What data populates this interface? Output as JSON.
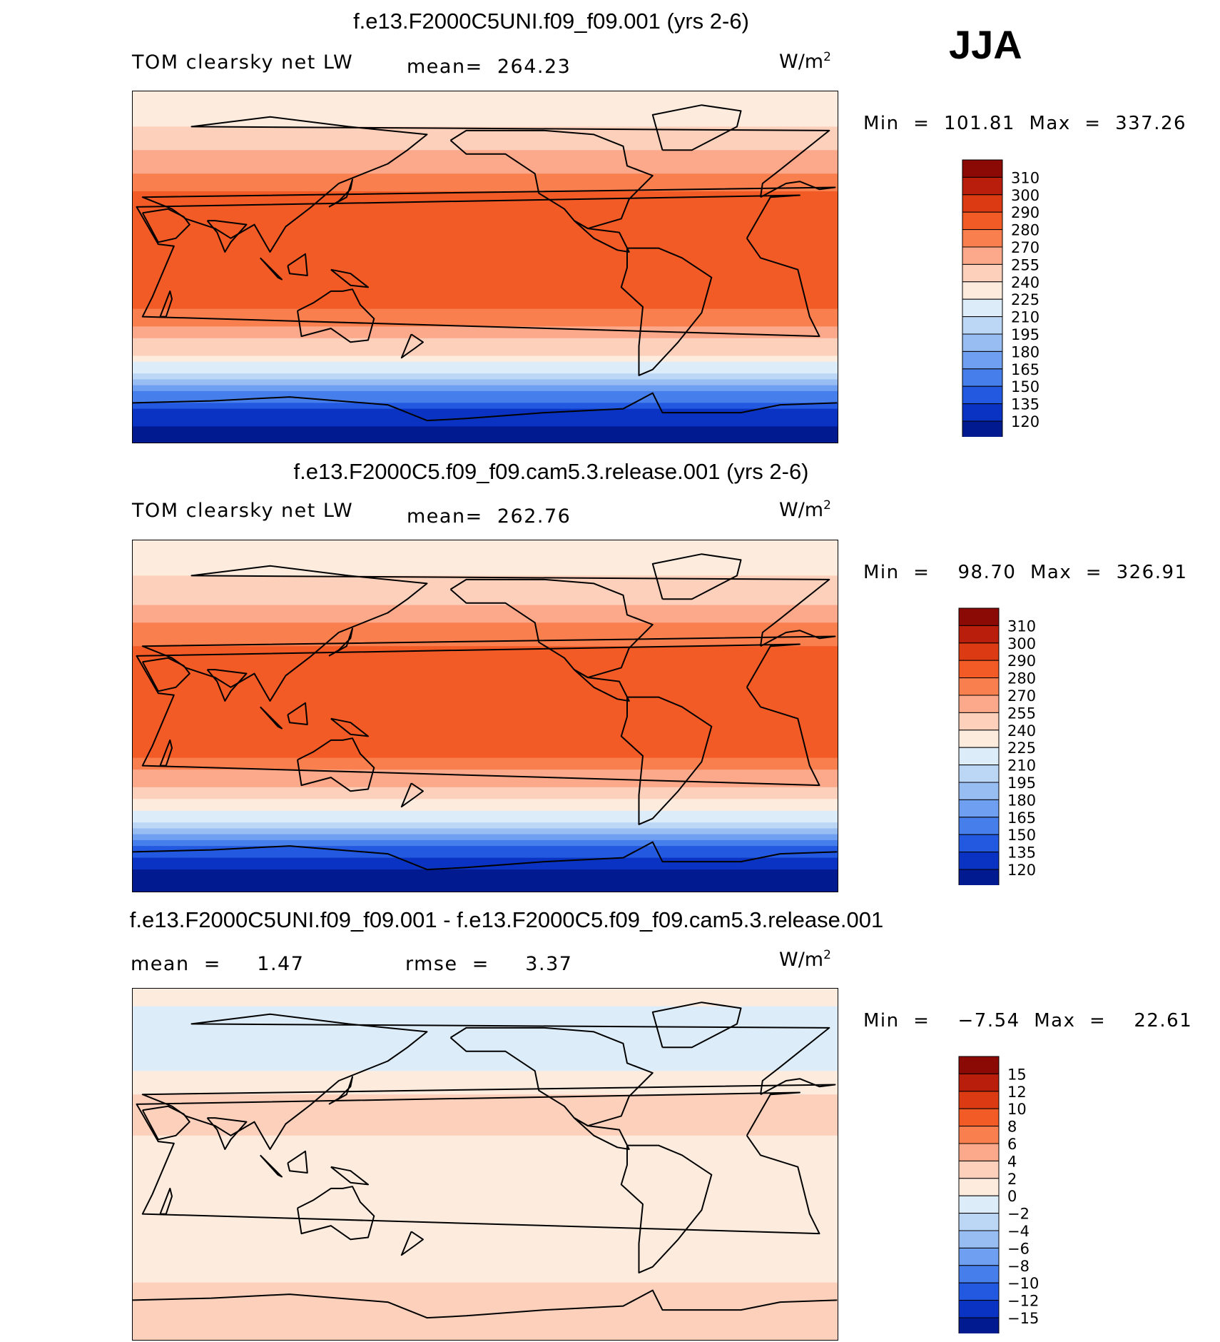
{
  "season": "JJA",
  "panels": [
    {
      "title": "f.e13.F2000C5UNI.f09_f09.001 (yrs 2-6)",
      "left_label": "TOM clearsky net LW",
      "stat": "mean=  264.23",
      "units": "W/m",
      "units_sup": "2",
      "minmax": "Min  =  101.81  Max  =  337.26"
    },
    {
      "title": "f.e13.F2000C5.f09_f09.cam5.3.release.001 (yrs 2-6)",
      "left_label": "TOM clearsky net LW",
      "stat": "mean=  262.76",
      "units": "W/m",
      "units_sup": "2",
      "minmax": "Min  =    98.70  Max  =  326.91"
    },
    {
      "title": "f.e13.F2000C5UNI.f09_f09.001 - f.e13.F2000C5.f09_f09.cam5.3.release.001",
      "left_label": "mean  =     1.47",
      "stat": "rmse  =     3.37",
      "units": "W/m",
      "units_sup": "2",
      "minmax": "Min  =    −7.54  Max  =    22.61"
    }
  ],
  "chart_data": [
    {
      "type": "heatmap",
      "title": "f.e13.F2000C5UNI.f09_f09.001 (yrs 2-6)",
      "variable": "TOM clearsky net LW",
      "mean": 264.23,
      "min": 101.81,
      "max": 337.26,
      "units": "W/m2",
      "season": "JJA",
      "colorbar_levels": [
        "310",
        "300",
        "290",
        "280",
        "270",
        "255",
        "240",
        "225",
        "210",
        "195",
        "180",
        "165",
        "150",
        "135",
        "120"
      ],
      "colorbar_colors": [
        "#8b0a05",
        "#b81e0b",
        "#dc3a12",
        "#f25a26",
        "#fa7f4e",
        "#fca88a",
        "#fdd0bb",
        "#fdebde",
        "#dcecf8",
        "#bcd6f6",
        "#97bdf3",
        "#6f9ff0",
        "#467fec",
        "#2359e0",
        "#0b33c3",
        "#011a8f"
      ],
      "zonal_profile": [
        {
          "lat": 90,
          "value": 228
        },
        {
          "lat": 75,
          "value": 236
        },
        {
          "lat": 60,
          "value": 255
        },
        {
          "lat": 45,
          "value": 275
        },
        {
          "lat": 30,
          "value": 288
        },
        {
          "lat": 15,
          "value": 285
        },
        {
          "lat": 0,
          "value": 285
        },
        {
          "lat": -15,
          "value": 288
        },
        {
          "lat": -30,
          "value": 270
        },
        {
          "lat": -45,
          "value": 238
        },
        {
          "lat": -55,
          "value": 205
        },
        {
          "lat": -65,
          "value": 160
        },
        {
          "lat": -75,
          "value": 125
        },
        {
          "lat": -90,
          "value": 110
        }
      ]
    },
    {
      "type": "heatmap",
      "title": "f.e13.F2000C5.f09_f09.cam5.3.release.001 (yrs 2-6)",
      "variable": "TOM clearsky net LW",
      "mean": 262.76,
      "min": 98.7,
      "max": 326.91,
      "units": "W/m2",
      "season": "JJA",
      "colorbar_levels": [
        "310",
        "300",
        "290",
        "280",
        "270",
        "255",
        "240",
        "225",
        "210",
        "195",
        "180",
        "165",
        "150",
        "135",
        "120"
      ],
      "colorbar_colors": [
        "#8b0a05",
        "#b81e0b",
        "#dc3a12",
        "#f25a26",
        "#fa7f4e",
        "#fca88a",
        "#fdd0bb",
        "#fdebde",
        "#dcecf8",
        "#bcd6f6",
        "#97bdf3",
        "#6f9ff0",
        "#467fec",
        "#2359e0",
        "#0b33c3",
        "#011a8f"
      ],
      "zonal_profile": [
        {
          "lat": 90,
          "value": 228
        },
        {
          "lat": 75,
          "value": 236
        },
        {
          "lat": 60,
          "value": 253
        },
        {
          "lat": 45,
          "value": 272
        },
        {
          "lat": 30,
          "value": 285
        },
        {
          "lat": 15,
          "value": 283
        },
        {
          "lat": 0,
          "value": 283
        },
        {
          "lat": -15,
          "value": 286
        },
        {
          "lat": -30,
          "value": 268
        },
        {
          "lat": -45,
          "value": 236
        },
        {
          "lat": -55,
          "value": 203
        },
        {
          "lat": -65,
          "value": 158
        },
        {
          "lat": -75,
          "value": 123
        },
        {
          "lat": -90,
          "value": 108
        }
      ]
    },
    {
      "type": "heatmap",
      "title": "f.e13.F2000C5UNI.f09_f09.001 - f.e13.F2000C5.f09_f09.cam5.3.release.001",
      "variable": "TOM clearsky net LW difference",
      "mean": 1.47,
      "rmse": 3.37,
      "min": -7.54,
      "max": 22.61,
      "units": "W/m2",
      "season": "JJA",
      "colorbar_levels": [
        "15",
        "12",
        "10",
        "8",
        "6",
        "4",
        "2",
        "0",
        "−2",
        "−4",
        "−6",
        "−8",
        "−10",
        "−12",
        "−15"
      ],
      "colorbar_colors": [
        "#8b0a05",
        "#b81e0b",
        "#dc3a12",
        "#f25a26",
        "#fa7f4e",
        "#fca88a",
        "#fdd0bb",
        "#fdebde",
        "#dcecf8",
        "#bcd6f6",
        "#97bdf3",
        "#6f9ff0",
        "#467fec",
        "#2359e0",
        "#0b33c3",
        "#011a8f"
      ],
      "zonal_profile": [
        {
          "lat": 90,
          "value": 1
        },
        {
          "lat": 60,
          "value": -2
        },
        {
          "lat": 30,
          "value": 3
        },
        {
          "lat": 0,
          "value": 1
        },
        {
          "lat": -30,
          "value": 0
        },
        {
          "lat": -60,
          "value": 2
        },
        {
          "lat": -90,
          "value": 2
        }
      ]
    }
  ]
}
